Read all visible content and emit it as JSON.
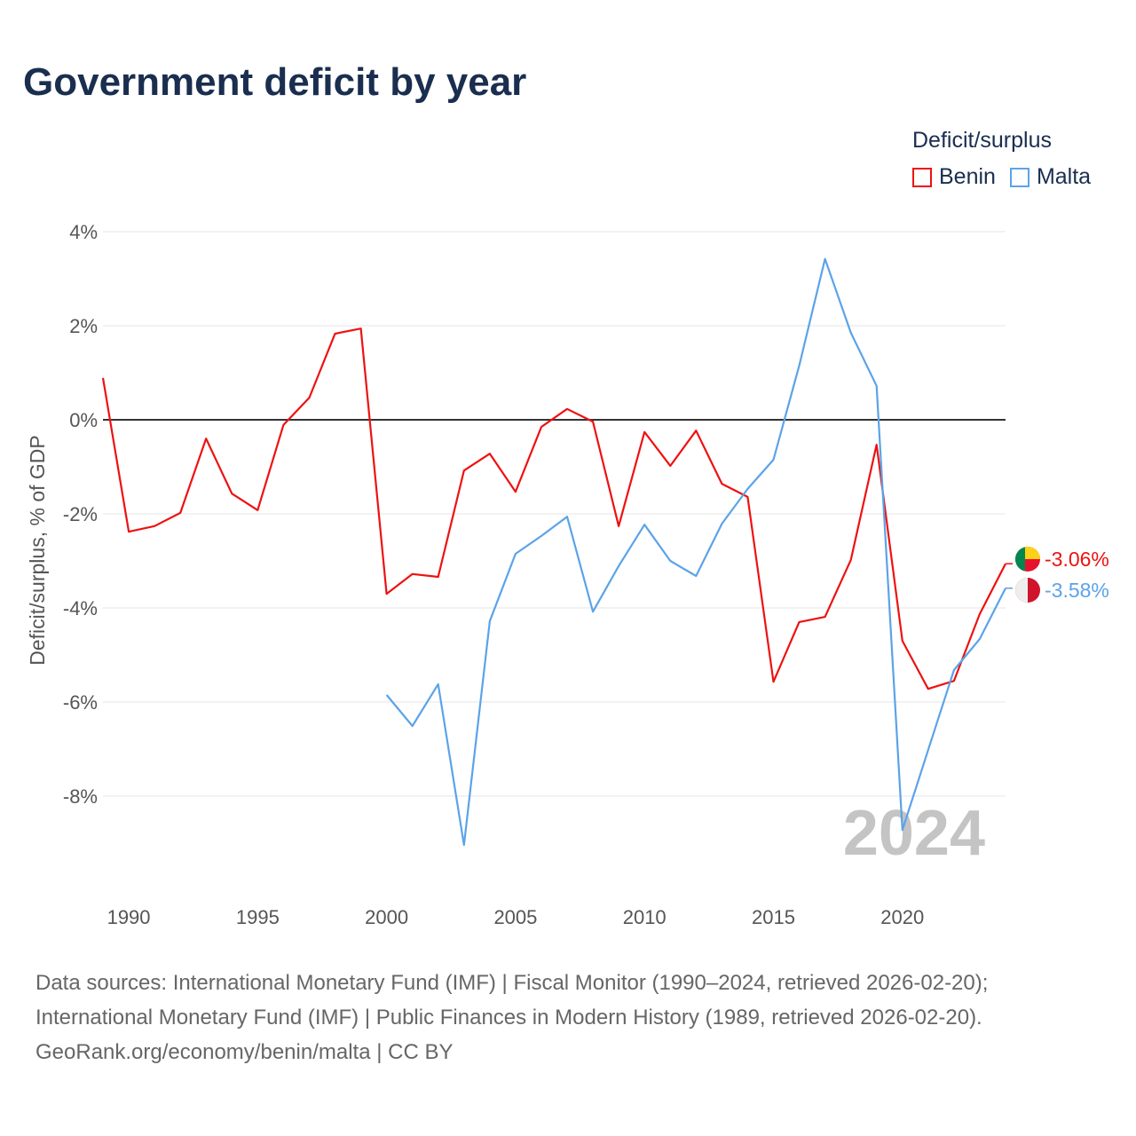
{
  "title": "Government deficit by year",
  "legend": {
    "title": "Deficit/surplus",
    "items": [
      {
        "label": "Benin",
        "color": "#ee1111"
      },
      {
        "label": "Malta",
        "color": "#5ba3e8"
      }
    ]
  },
  "year_watermark": "2024",
  "end_labels": {
    "benin": "-3.06%",
    "malta": "-3.58%"
  },
  "footer": [
    "Data sources: International Monetary Fund (IMF) | Fiscal Monitor (1990–2024, retrieved 2026-02-20);",
    "International Monetary Fund (IMF) | Public Finances in Modern History (1989, retrieved 2026-02-20).",
    "GeoRank.org/economy/benin/malta | CC BY"
  ],
  "chart_data": {
    "type": "line",
    "title": "Government deficit by year",
    "xlabel": "",
    "ylabel": "Deficit/surplus, % of GDP",
    "ylim": [
      -10,
      4
    ],
    "xlim": [
      1989,
      2024
    ],
    "yticks": [
      4,
      2,
      0,
      -2,
      -4,
      -6,
      -8
    ],
    "ytick_labels": [
      "4%",
      "2%",
      "0%",
      "-2%",
      "-4%",
      "-6%",
      "-8%"
    ],
    "xticks": [
      1990,
      1995,
      2000,
      2005,
      2010,
      2015,
      2020
    ],
    "xtick_labels": [
      "1990",
      "1995",
      "2000",
      "2005",
      "2010",
      "2015",
      "2020"
    ],
    "grid": true,
    "legend_position": "top-right",
    "series": [
      {
        "name": "Benin",
        "color": "#ee1111",
        "x": [
          1989,
          1990,
          1991,
          1992,
          1993,
          1994,
          1995,
          1996,
          1997,
          1998,
          1999,
          2000,
          2001,
          2002,
          2003,
          2004,
          2005,
          2006,
          2007,
          2008,
          2009,
          2010,
          2011,
          2012,
          2013,
          2014,
          2015,
          2016,
          2017,
          2018,
          2019,
          2020,
          2021,
          2022,
          2023,
          2024
        ],
        "values": [
          0.89,
          -2.38,
          -2.26,
          -1.98,
          -0.4,
          -1.57,
          -1.92,
          -0.11,
          0.47,
          1.83,
          1.94,
          -3.7,
          -3.28,
          -3.34,
          -1.08,
          -0.72,
          -1.53,
          -0.15,
          0.23,
          -0.04,
          -2.26,
          -0.26,
          -0.98,
          -0.23,
          -1.36,
          -1.64,
          -5.57,
          -4.3,
          -4.19,
          -2.98,
          -0.53,
          -4.7,
          -5.72,
          -5.55,
          -4.13,
          -3.06
        ]
      },
      {
        "name": "Malta",
        "color": "#5ba3e8",
        "x": [
          2000,
          2001,
          2002,
          2003,
          2004,
          2005,
          2006,
          2007,
          2008,
          2009,
          2010,
          2011,
          2012,
          2013,
          2014,
          2015,
          2016,
          2017,
          2018,
          2019,
          2020,
          2021,
          2022,
          2023,
          2024
        ],
        "values": [
          -5.85,
          -6.51,
          -5.62,
          -9.04,
          -4.28,
          -2.85,
          -2.47,
          -2.06,
          -4.08,
          -3.11,
          -2.23,
          -3.0,
          -3.32,
          -2.21,
          -1.47,
          -0.85,
          1.15,
          3.42,
          1.85,
          0.72,
          -8.72,
          -7.02,
          -5.32,
          -4.66,
          -3.58
        ]
      }
    ]
  }
}
